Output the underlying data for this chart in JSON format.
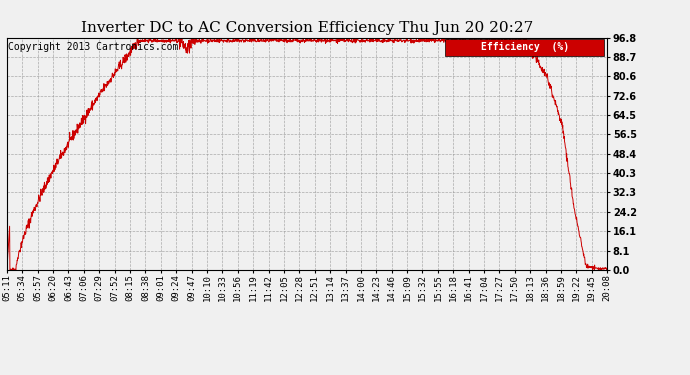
{
  "title": "Inverter DC to AC Conversion Efficiency Thu Jun 20 20:27",
  "copyright_text": "Copyright 2013 Cartronics.com",
  "legend_label": "Efficiency  (%)",
  "legend_bg": "#cc0000",
  "legend_fg": "#ffffff",
  "line_color": "#cc0000",
  "background_color": "#f0f0f0",
  "grid_color": "#999999",
  "ytick_labels": [
    "0.0",
    "8.1",
    "16.1",
    "24.2",
    "32.3",
    "40.3",
    "48.4",
    "56.5",
    "64.5",
    "72.6",
    "80.6",
    "88.7",
    "96.8"
  ],
  "ytick_values": [
    0.0,
    8.1,
    16.1,
    24.2,
    32.3,
    40.3,
    48.4,
    56.5,
    64.5,
    72.6,
    80.6,
    88.7,
    96.8
  ],
  "xtick_labels": [
    "05:11",
    "05:34",
    "05:57",
    "06:20",
    "06:43",
    "07:06",
    "07:29",
    "07:52",
    "08:15",
    "08:38",
    "09:01",
    "09:24",
    "09:47",
    "10:10",
    "10:33",
    "10:56",
    "11:19",
    "11:42",
    "12:05",
    "12:28",
    "12:51",
    "13:14",
    "13:37",
    "14:00",
    "14:23",
    "14:46",
    "15:09",
    "15:32",
    "15:55",
    "16:18",
    "16:41",
    "17:04",
    "17:27",
    "17:50",
    "18:13",
    "18:36",
    "18:59",
    "19:22",
    "19:45",
    "20:08"
  ],
  "ylim": [
    0.0,
    96.8
  ],
  "title_fontsize": 11,
  "copyright_fontsize": 7,
  "tick_label_fontsize": 6.5
}
